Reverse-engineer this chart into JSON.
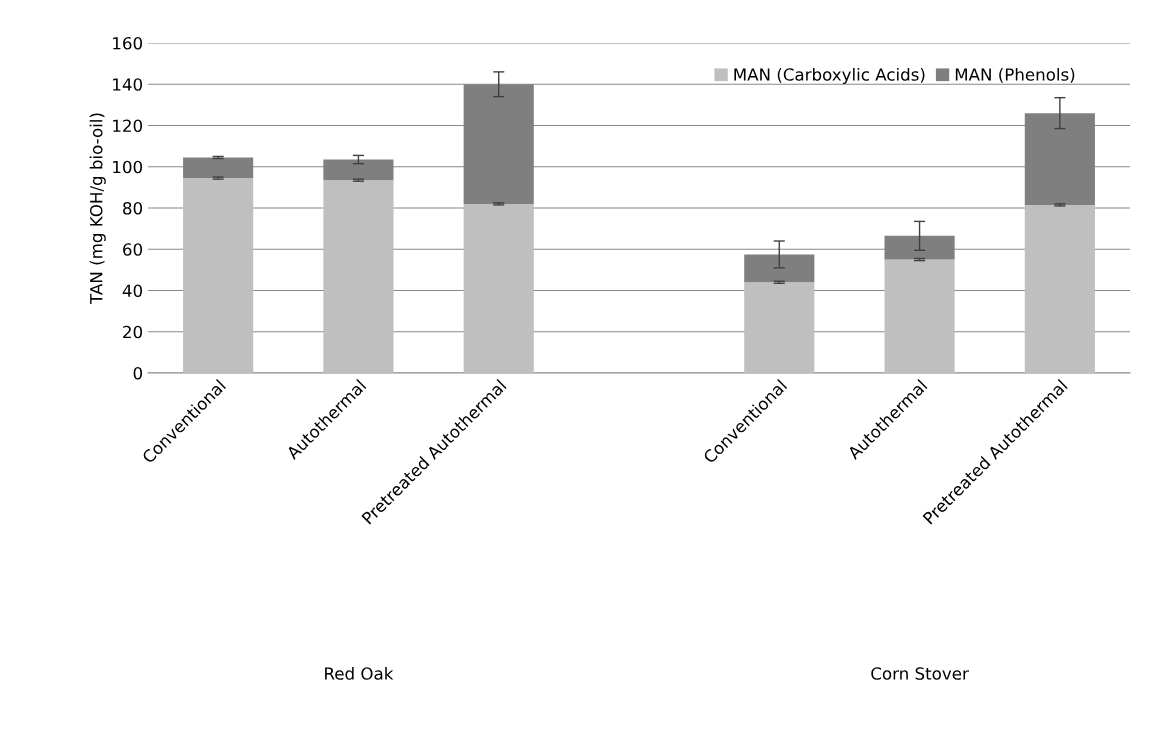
{
  "chart_data": {
    "type": "bar",
    "stacked": true,
    "ylabel": "TAN (mg KOH/g bio-oil)",
    "categories": [
      "Conventional",
      "Autothermal",
      "Pretreated Autothermal",
      null,
      "Conventional",
      "Autothermal",
      "Pretreated Autothermal"
    ],
    "series": [
      {
        "name": "MAN (Carboxylic Acids)",
        "color": "#bfbfbf",
        "values": [
          94.5,
          93.5,
          82,
          null,
          44,
          55,
          81.5
        ],
        "errors": [
          0.5,
          0.5,
          0.5,
          null,
          0.5,
          0.5,
          0.5
        ]
      },
      {
        "name": "MAN (Phenols)",
        "color": "#7f7f7f",
        "values": [
          10,
          10,
          58,
          null,
          13.5,
          11.5,
          44.5
        ],
        "errors": [
          0.5,
          2,
          6,
          null,
          6.5,
          7,
          7.5
        ]
      }
    ],
    "ylim": [
      0,
      160
    ],
    "yticks": [
      0,
      20,
      40,
      60,
      80,
      100,
      120,
      140,
      160
    ],
    "grid": "y",
    "legend": "top right",
    "annotations": [
      "Red Oak",
      "Corn Stover"
    ]
  }
}
